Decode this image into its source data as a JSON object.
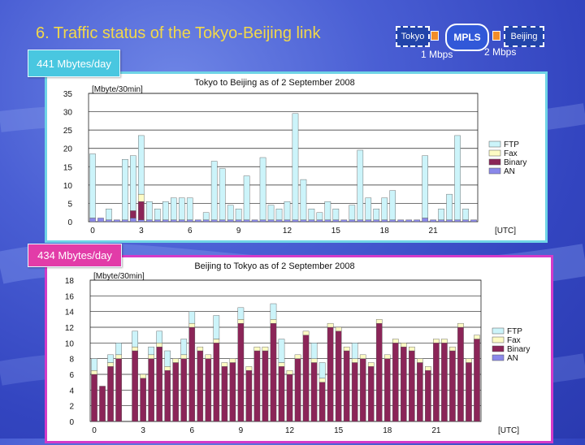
{
  "slide": {
    "title": "6.  Traffic status of the Tokyo-Beijing link"
  },
  "network": {
    "left_node": "Tokyo",
    "cloud": "MPLS",
    "right_node": "Beijing",
    "left_speed": "1 Mbps",
    "right_speed": "2 Mbps"
  },
  "callouts": {
    "top": "441 Mbytes/day",
    "bottom": "434 Mbytes/day"
  },
  "colors": {
    "ftp": "#ccf4fa",
    "fax": "#fdfbc4",
    "binary": "#8b2558",
    "an": "#8a88ea",
    "panel1_border": "#6fd4e6",
    "panel2_border": "#d43bc8"
  },
  "chart_data": [
    {
      "type": "bar",
      "title": "Tokyo  to  Beijing  as of 2 September 2008",
      "ylabel": "[Mbyte/30min]",
      "xlabel": "[UTC]",
      "ylim": [
        0,
        35
      ],
      "yticks": [
        "0",
        "5",
        "10",
        "15",
        "20",
        "25",
        "30",
        "35"
      ],
      "xtick_labels": [
        "0",
        "3",
        "6",
        "9",
        "12",
        "15",
        "18",
        "21"
      ],
      "legend": [
        "FTP",
        "Fax",
        "Binary",
        "AN"
      ],
      "stacked": true,
      "series": [
        {
          "name": "AN",
          "values": [
            1,
            1,
            0.5,
            0.5,
            0.5,
            1,
            0.5,
            0.5,
            0.5,
            0.5,
            0.5,
            0.5,
            0.5,
            0.5,
            0.5,
            0.5,
            0.5,
            0.5,
            0.5,
            0.5,
            0.5,
            0.5,
            0.5,
            0.5,
            0.5,
            0.5,
            0.5,
            0.5,
            0.5,
            0.5,
            0.5,
            0.5,
            0.5,
            0.5,
            0.5,
            0.5,
            0.5,
            0.5,
            0.5,
            0.5,
            0.5,
            1,
            0.5,
            0.5,
            0.5,
            0.5,
            0.5,
            0.5
          ]
        },
        {
          "name": "Binary",
          "values": [
            0,
            0,
            0,
            0,
            0,
            2,
            5,
            0,
            0,
            0,
            0,
            0,
            0,
            0,
            0,
            0,
            0,
            0,
            0,
            0,
            0,
            0,
            0,
            0,
            0,
            0,
            0,
            0,
            0,
            0,
            0,
            0,
            0,
            0,
            0,
            0,
            0,
            0,
            0,
            0,
            0,
            0,
            0,
            0,
            0,
            0,
            0,
            0
          ]
        },
        {
          "name": "Fax",
          "values": [
            0,
            0,
            0,
            0,
            0,
            0,
            2,
            0,
            0,
            0,
            0,
            0,
            0,
            0,
            0,
            0,
            0,
            0,
            0,
            0,
            0,
            0,
            0,
            0,
            0,
            0,
            0,
            0,
            0,
            0,
            0,
            0,
            0,
            0,
            0,
            0,
            0,
            0,
            0,
            0,
            0,
            0,
            0,
            0,
            0,
            0,
            0,
            0
          ]
        },
        {
          "name": "FTP",
          "values": [
            17.5,
            0,
            3,
            0,
            16.5,
            15,
            16,
            5,
            3,
            5,
            6,
            6,
            6,
            0,
            2,
            16,
            14,
            4,
            3,
            12,
            0,
            17,
            4,
            3,
            5,
            29,
            11,
            3,
            2,
            5,
            3,
            0,
            4,
            19,
            6,
            3,
            6,
            8,
            0,
            0,
            0,
            17,
            0,
            3,
            7,
            23,
            3,
            0
          ]
        }
      ]
    },
    {
      "type": "bar",
      "title": "Beijing  to  Tokyo  as of 2 September 2008",
      "ylabel": "[Mbyte/30min]",
      "xlabel": "[UTC]",
      "ylim": [
        0,
        18
      ],
      "yticks": [
        "0",
        "2",
        "4",
        "6",
        "8",
        "10",
        "12",
        "14",
        "16",
        "18"
      ],
      "xtick_labels": [
        "0",
        "3",
        "6",
        "9",
        "12",
        "15",
        "18",
        "21"
      ],
      "legend": [
        "FTP",
        "Fax",
        "Binary",
        "AN"
      ],
      "stacked": true,
      "series": [
        {
          "name": "AN",
          "values": [
            0,
            0,
            0,
            0,
            0,
            0,
            0,
            0,
            0,
            0,
            0,
            0,
            0,
            0,
            0,
            0,
            0,
            0,
            0,
            0,
            0,
            0,
            0,
            0,
            0,
            0,
            0,
            0,
            0,
            0,
            0,
            0,
            0,
            0,
            0,
            0,
            0,
            0,
            0,
            0,
            0,
            0,
            0,
            0,
            0,
            0,
            0,
            0
          ]
        },
        {
          "name": "Binary",
          "values": [
            6,
            4.5,
            7,
            8,
            0,
            9,
            5.5,
            8,
            9.5,
            6.5,
            7.5,
            8,
            12,
            9,
            8,
            10,
            7,
            7.5,
            12.5,
            6.5,
            9,
            9,
            12.5,
            7,
            6,
            8,
            11,
            7.5,
            5,
            12,
            11.5,
            9,
            7.5,
            8,
            7,
            12.5,
            8,
            10,
            9.5,
            9,
            7.5,
            6.5,
            10,
            10,
            9,
            12,
            7.5,
            10.5
          ]
        },
        {
          "name": "Fax",
          "values": [
            0.5,
            0,
            0.5,
            0.5,
            0,
            0.5,
            0.5,
            0.5,
            0.5,
            0.5,
            0.5,
            0.5,
            0.5,
            0.5,
            0.5,
            0.5,
            0.5,
            0.5,
            0.5,
            0.5,
            0.5,
            0.5,
            0.5,
            0.5,
            0.5,
            0.5,
            0.5,
            0.5,
            0.5,
            0.5,
            0.5,
            0.5,
            0.5,
            0.5,
            0.5,
            0.5,
            0.5,
            0.5,
            0.5,
            0.5,
            0.5,
            0.5,
            0.5,
            0.5,
            0.5,
            0.5,
            0.5,
            0.5
          ]
        },
        {
          "name": "FTP",
          "values": [
            1.5,
            0,
            1,
            1.5,
            0,
            2,
            0,
            1,
            1.5,
            2,
            0,
            2,
            1.5,
            0,
            0,
            3,
            0,
            0,
            1.5,
            0,
            0,
            0,
            2,
            3,
            0,
            0,
            0,
            2,
            2,
            0,
            0,
            0,
            2,
            0,
            0,
            0,
            0,
            0,
            0,
            0,
            0,
            0,
            0,
            0,
            0,
            0,
            0,
            0
          ]
        }
      ]
    }
  ]
}
